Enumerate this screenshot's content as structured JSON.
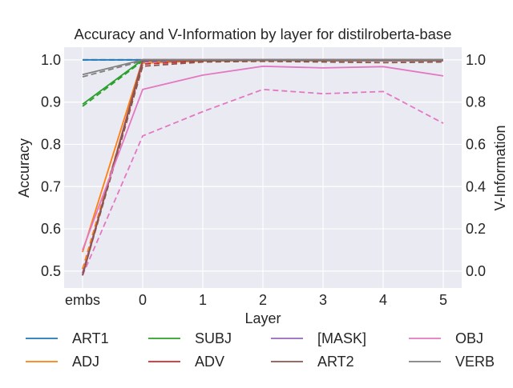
{
  "chart_data": {
    "type": "line",
    "title": "Accuracy and V-Information by layer for distilroberta-base",
    "xlabel": "Layer",
    "ylabel": "Accuracy",
    "y2label": "V-Information",
    "categories": [
      "embs",
      "0",
      "1",
      "2",
      "3",
      "4",
      "5"
    ],
    "ylim": [
      0.46,
      1.03
    ],
    "y2lim": [
      -0.08,
      1.06
    ],
    "yticks": [
      "0.5",
      "0.6",
      "0.7",
      "0.8",
      "0.9",
      "1.0"
    ],
    "y2ticks": [
      "0.0",
      "0.2",
      "0.4",
      "0.6",
      "0.8",
      "1.0"
    ],
    "grid": true,
    "legend_position": "bottom",
    "legend_columns": 4,
    "series": [
      {
        "name": "ART1",
        "color": "#1f77b4",
        "accuracy": [
          1.0,
          1.0,
          1.0,
          1.0,
          1.0,
          1.0,
          1.0
        ],
        "vinfo": [
          1.0,
          1.0,
          1.0,
          1.0,
          1.0,
          1.0,
          1.0
        ]
      },
      {
        "name": "ADJ",
        "color": "#ff7f0e",
        "accuracy": [
          0.545,
          1.0,
          1.0,
          1.0,
          1.0,
          1.0,
          1.0
        ],
        "vinfo": [
          0.01,
          0.985,
          0.995,
          0.997,
          0.997,
          0.997,
          0.997
        ]
      },
      {
        "name": "SUBJ",
        "color": "#2ca02c",
        "accuracy": [
          0.895,
          1.0,
          1.0,
          1.0,
          1.0,
          1.0,
          1.0
        ],
        "vinfo": [
          0.78,
          0.995,
          1.0,
          1.0,
          1.0,
          1.0,
          1.0
        ]
      },
      {
        "name": "ADV",
        "color": "#d62728",
        "accuracy": [
          0.49,
          1.0,
          1.0,
          1.0,
          1.0,
          1.0,
          1.0
        ],
        "vinfo": [
          -0.01,
          0.98,
          0.995,
          0.997,
          0.997,
          0.997,
          0.997
        ]
      },
      {
        "name": "[MASK]",
        "color": "#9467bd",
        "accuracy": [
          0.49,
          1.0,
          1.0,
          1.0,
          1.0,
          1.0,
          1.0
        ],
        "vinfo": [
          -0.01,
          0.99,
          0.998,
          1.0,
          1.0,
          1.0,
          1.0
        ]
      },
      {
        "name": "ART2",
        "color": "#8c564b",
        "accuracy": [
          0.49,
          0.998,
          0.998,
          0.999,
          0.998,
          0.998,
          0.998
        ],
        "vinfo": [
          -0.02,
          0.97,
          0.99,
          0.993,
          0.99,
          0.987,
          0.99
        ]
      },
      {
        "name": "OBJ",
        "color": "#e377c2",
        "accuracy": [
          0.55,
          0.93,
          0.964,
          0.985,
          0.981,
          0.984,
          0.962
        ],
        "vinfo": [
          -0.02,
          0.64,
          0.755,
          0.86,
          0.84,
          0.85,
          0.7
        ]
      },
      {
        "name": "VERB",
        "color": "#7f7f7f",
        "accuracy": [
          0.965,
          1.0,
          1.0,
          1.0,
          1.0,
          1.0,
          1.0
        ],
        "vinfo": [
          0.92,
          0.995,
          0.998,
          1.0,
          1.0,
          1.0,
          1.0
        ]
      }
    ]
  }
}
